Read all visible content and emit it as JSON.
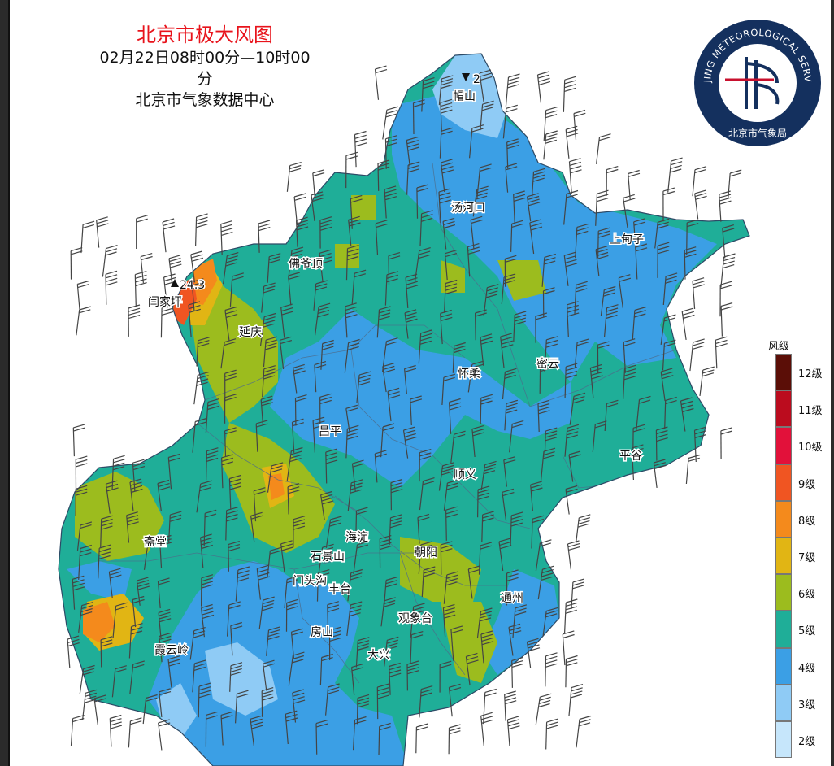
{
  "header": {
    "title": "北京市极大风图",
    "time_range": "02月22日08时00分—10时00分",
    "source": "北京市气象数据中心"
  },
  "logo": {
    "arc_text": "BEIJING METEOROLOGICAL SERVICE",
    "bottom_text": "北京市气象局",
    "icon": "weather-flag-emblem"
  },
  "map": {
    "stations": [
      {
        "name": "帽山",
        "value": "2"
      },
      {
        "name": "闫家坪",
        "value": "24.3"
      }
    ],
    "places": [
      "汤河口",
      "上甸子",
      "佛爷顶",
      "延庆",
      "怀柔",
      "密云",
      "昌平",
      "平谷",
      "顺义",
      "海淀",
      "朝阳",
      "斋堂",
      "石景山",
      "门头沟",
      "丰台",
      "通州",
      "观象台",
      "房山",
      "霞云岭",
      "大兴"
    ],
    "colors": {
      "level2": "#c6e6fb",
      "level3": "#8fcbf5",
      "level4": "#3b9fe5",
      "level5": "#1fae98",
      "level6": "#9cbc1e",
      "level7": "#e1b514",
      "level8": "#f48a1c",
      "level9": "#f05522",
      "level10": "#e2113a",
      "level11": "#bb0c1e",
      "level12": "#5b0e07"
    }
  },
  "legend": {
    "title": "风级",
    "items": [
      {
        "label": "12级",
        "color": "#5b0e07"
      },
      {
        "label": "11级",
        "color": "#bb0c1e"
      },
      {
        "label": "10级",
        "color": "#e2113a"
      },
      {
        "label": "9级",
        "color": "#f05522"
      },
      {
        "label": "8级",
        "color": "#f48a1c"
      },
      {
        "label": "7级",
        "color": "#e1b514"
      },
      {
        "label": "6级",
        "color": "#9cbc1e"
      },
      {
        "label": "5级",
        "color": "#1fae98"
      },
      {
        "label": "4级",
        "color": "#3b9fe5"
      },
      {
        "label": "3级",
        "color": "#8fcbf5"
      },
      {
        "label": "2级",
        "color": "#c6e6fb"
      }
    ]
  }
}
